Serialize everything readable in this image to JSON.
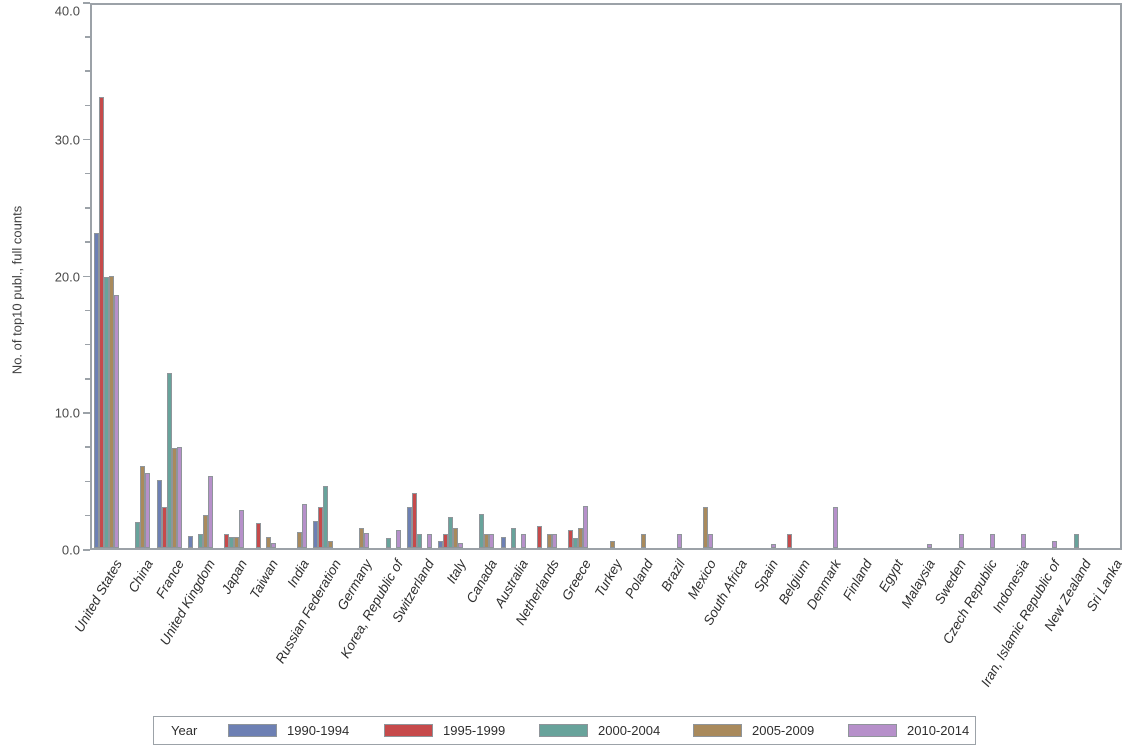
{
  "chart_data": {
    "type": "bar",
    "title": "",
    "xlabel": "",
    "ylabel": "No. of top10 publ., full counts",
    "ylim": [
      0,
      40
    ],
    "y_major_ticks": [
      0,
      10,
      20,
      30,
      40
    ],
    "y_tick_labels": [
      "0.0",
      "10.0",
      "20.0",
      "30.0",
      "40.0"
    ],
    "y_minor_step": 2.5,
    "grid": false,
    "legend_position": "bottom",
    "frame_color": "#9ca2a8",
    "bar_outline_color": "#8f959a",
    "categories": [
      "United States",
      "China",
      "France",
      "United Kingdom",
      "Japan",
      "Taiwan",
      "India",
      "Russian Federation",
      "Germany",
      "Korea, Republic of",
      "Switzerland",
      "Italy",
      "Canada",
      "Australia",
      "Netherlands",
      "Greece",
      "Turkey",
      "Poland",
      "Brazil",
      "Mexico",
      "South Africa",
      "Spain",
      "Belgium",
      "Denmark",
      "Finland",
      "Egypt",
      "Malaysia",
      "Sweden",
      "Czech Republic",
      "Indonesia",
      "Iran, Islamic Republic of",
      "New Zealand",
      "Sri Lanka"
    ],
    "series": [
      {
        "name": "1990-1994",
        "color": "#6d80b4",
        "values": [
          23,
          0,
          5,
          0.9,
          0,
          0,
          0,
          2,
          0,
          0,
          3,
          0.5,
          0,
          0.8,
          0,
          0,
          0,
          0,
          0,
          0,
          0,
          0,
          0,
          0,
          0,
          0,
          0,
          0,
          0,
          0,
          0,
          0,
          0
        ]
      },
      {
        "name": "1995-1999",
        "color": "#c64a4b",
        "values": [
          33,
          0,
          3,
          0,
          1,
          1.8,
          0,
          3,
          0,
          0,
          4,
          1,
          0,
          0,
          1.6,
          1.3,
          0,
          0,
          0,
          0,
          0,
          0,
          1,
          0,
          0,
          0,
          0,
          0,
          0,
          0,
          0,
          0,
          0
        ]
      },
      {
        "name": "2000-2004",
        "color": "#68a39b",
        "values": [
          19.8,
          1.9,
          12.8,
          1,
          0.8,
          0,
          0,
          4.5,
          0,
          0.7,
          1,
          2.3,
          2.5,
          1.5,
          0,
          0.7,
          0,
          0,
          0,
          0,
          0,
          0,
          0,
          0,
          0,
          0,
          0,
          0,
          0,
          0,
          0,
          1,
          0
        ]
      },
      {
        "name": "2005-2009",
        "color": "#a98a5c",
        "values": [
          19.9,
          6,
          7.3,
          2.4,
          0.8,
          0.8,
          1.2,
          0.5,
          1.5,
          0,
          0,
          1.5,
          1,
          0,
          1,
          1.5,
          0.5,
          1,
          0,
          3,
          0,
          0,
          0,
          0,
          0,
          0,
          0,
          0,
          0,
          0,
          0,
          0,
          0
        ]
      },
      {
        "name": "2010-2014",
        "color": "#b690ca",
        "values": [
          18.5,
          5.5,
          7.4,
          5.3,
          2.8,
          0.4,
          3.2,
          0,
          1.1,
          1.3,
          1,
          0.4,
          1,
          1,
          1,
          3.1,
          0,
          0,
          1,
          1,
          0,
          0.3,
          0,
          3,
          0,
          0,
          0.3,
          1,
          1,
          1,
          0.5,
          0,
          0
        ]
      }
    ]
  },
  "legend": {
    "title": "Year"
  }
}
